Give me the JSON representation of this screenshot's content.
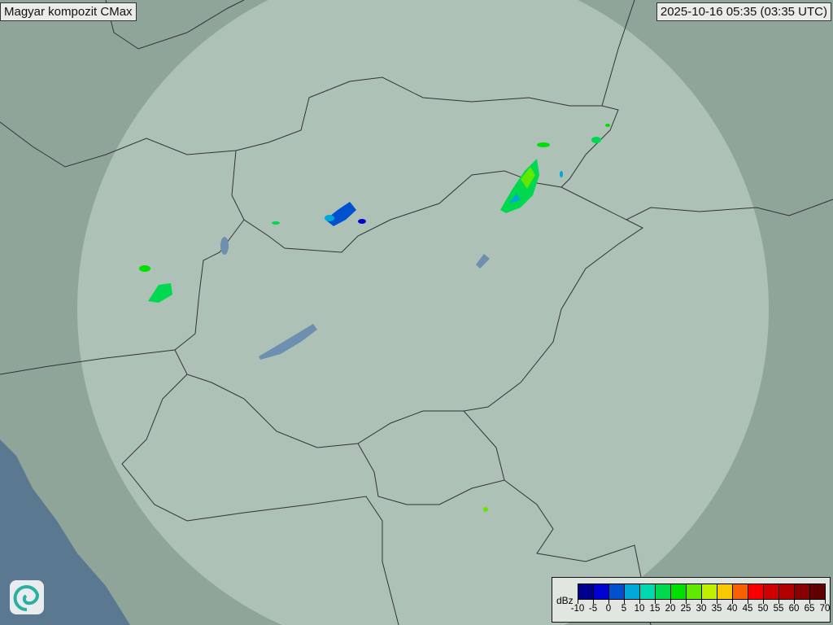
{
  "header": {
    "title": "Magyar kompozit  CMax",
    "timestamp": "2025-10-16 05:35 (03:35 UTC)"
  },
  "legend": {
    "unit": "dBz",
    "ticks": [
      "-10",
      "-5",
      "0",
      "5",
      "10",
      "15",
      "20",
      "25",
      "30",
      "35",
      "40",
      "45",
      "50",
      "55",
      "60",
      "65",
      "70"
    ],
    "colors": [
      "#00008c",
      "#0000d0",
      "#0050d0",
      "#00a8d8",
      "#00d8b0",
      "#00d850",
      "#00e000",
      "#60e800",
      "#c0f000",
      "#f8c800",
      "#f86000",
      "#f80000",
      "#d00000",
      "#b00000",
      "#880000",
      "#600000"
    ]
  },
  "map": {
    "land_color": "#8fa59a",
    "coverage_color": "#c5d5cc",
    "sea_color": "#5a7890",
    "logo": "omsz-swirl-logo"
  }
}
